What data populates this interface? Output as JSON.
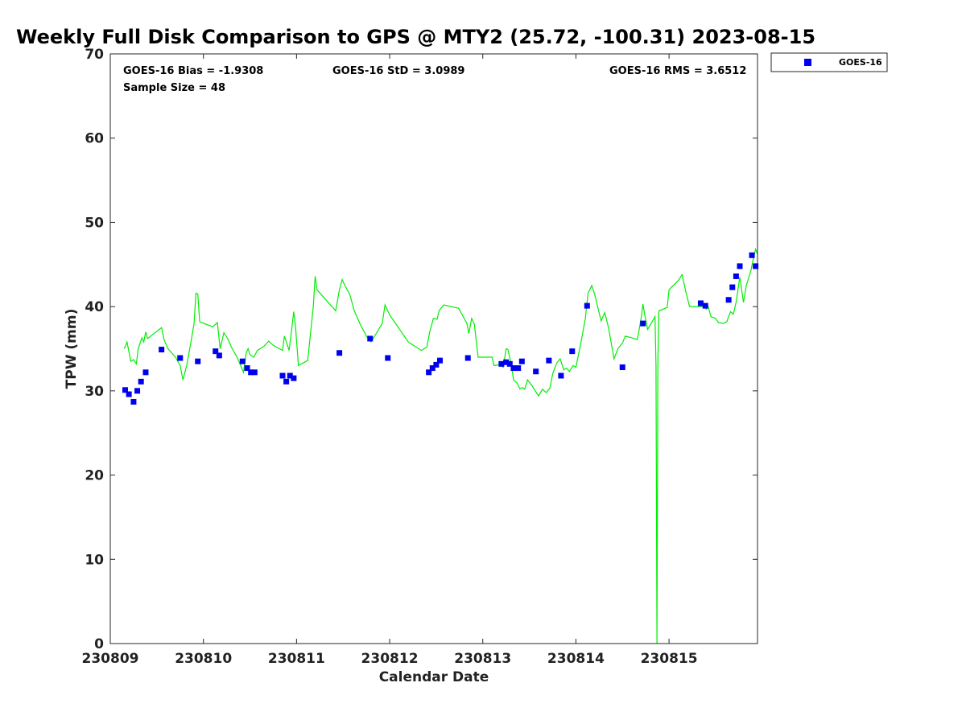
{
  "chart_data": {
    "type": "scatter",
    "title": "Weekly Full Disk Comparison to GPS @ MTY2 (25.72, -100.31) 2023-08-15",
    "xlabel": "Calendar Date",
    "ylabel": "TPW (mm)",
    "xlim": [
      0,
      6.95
    ],
    "ylim": [
      0,
      70
    ],
    "x_ticks": [
      {
        "x": 0,
        "label": "230809"
      },
      {
        "x": 1,
        "label": "230810"
      },
      {
        "x": 2,
        "label": "230811"
      },
      {
        "x": 3,
        "label": "230812"
      },
      {
        "x": 4,
        "label": "230813"
      },
      {
        "x": 5,
        "label": "230814"
      },
      {
        "x": 6,
        "label": "230815"
      }
    ],
    "y_ticks": [
      0,
      10,
      20,
      30,
      40,
      50,
      60,
      70
    ],
    "stats": {
      "bias": "GOES-16 Bias = -1.9308",
      "std": "GOES-16 StD = 3.0989",
      "rms": "GOES-16 RMS = 3.6512",
      "sample": "Sample Size = 48"
    },
    "legend_position": "top-right, outside plot",
    "series": [
      {
        "name": "GOES-16",
        "marker": "square",
        "color": "#0000ee",
        "points": [
          [
            0.16,
            30.1
          ],
          [
            0.2,
            29.6
          ],
          [
            0.25,
            28.7
          ],
          [
            0.29,
            30.0
          ],
          [
            0.33,
            31.1
          ],
          [
            0.38,
            32.2
          ],
          [
            0.55,
            34.9
          ],
          [
            0.75,
            33.9
          ],
          [
            0.94,
            33.5
          ],
          [
            1.13,
            34.7
          ],
          [
            1.17,
            34.2
          ],
          [
            1.42,
            33.5
          ],
          [
            1.47,
            32.7
          ],
          [
            1.51,
            32.2
          ],
          [
            1.55,
            32.2
          ],
          [
            1.85,
            31.8
          ],
          [
            1.89,
            31.1
          ],
          [
            1.93,
            31.8
          ],
          [
            1.97,
            31.5
          ],
          [
            2.46,
            34.5
          ],
          [
            2.79,
            36.2
          ],
          [
            2.98,
            33.9
          ],
          [
            3.42,
            32.2
          ],
          [
            3.46,
            32.7
          ],
          [
            3.5,
            33.1
          ],
          [
            3.54,
            33.6
          ],
          [
            3.84,
            33.9
          ],
          [
            4.2,
            33.2
          ],
          [
            4.25,
            33.4
          ],
          [
            4.29,
            33.2
          ],
          [
            4.33,
            32.7
          ],
          [
            4.38,
            32.7
          ],
          [
            4.42,
            33.5
          ],
          [
            4.57,
            32.3
          ],
          [
            4.71,
            33.6
          ],
          [
            4.84,
            31.8
          ],
          [
            4.96,
            34.7
          ],
          [
            5.12,
            40.1
          ],
          [
            5.5,
            32.8
          ],
          [
            5.72,
            38.0
          ],
          [
            6.34,
            40.4
          ],
          [
            6.39,
            40.1
          ],
          [
            6.64,
            40.8
          ],
          [
            6.68,
            42.3
          ],
          [
            6.72,
            43.6
          ],
          [
            6.76,
            44.8
          ],
          [
            6.89,
            46.1
          ],
          [
            6.93,
            44.8
          ]
        ]
      },
      {
        "marker": "line",
        "color": "#00ee00",
        "points": [
          [
            0.15,
            35.0
          ],
          [
            0.18,
            35.8
          ],
          [
            0.22,
            33.5
          ],
          [
            0.25,
            33.7
          ],
          [
            0.28,
            33.2
          ],
          [
            0.3,
            35.0
          ],
          [
            0.34,
            36.3
          ],
          [
            0.36,
            35.8
          ],
          [
            0.38,
            37.0
          ],
          [
            0.4,
            36.2
          ],
          [
            0.55,
            37.5
          ],
          [
            0.58,
            36.0
          ],
          [
            0.62,
            35.0
          ],
          [
            0.7,
            34.0
          ],
          [
            0.75,
            33.0
          ],
          [
            0.78,
            31.3
          ],
          [
            0.82,
            33.0
          ],
          [
            0.87,
            36.0
          ],
          [
            0.9,
            38.0
          ],
          [
            0.92,
            41.6
          ],
          [
            0.94,
            41.5
          ],
          [
            0.96,
            38.2
          ],
          [
            1.1,
            37.6
          ],
          [
            1.15,
            38.1
          ],
          [
            1.18,
            35.0
          ],
          [
            1.22,
            36.9
          ],
          [
            1.26,
            36.2
          ],
          [
            1.3,
            35.2
          ],
          [
            1.36,
            34.0
          ],
          [
            1.4,
            33.0
          ],
          [
            1.43,
            32.2
          ],
          [
            1.46,
            34.5
          ],
          [
            1.48,
            35.0
          ],
          [
            1.5,
            34.3
          ],
          [
            1.54,
            34.0
          ],
          [
            1.58,
            34.8
          ],
          [
            1.65,
            35.3
          ],
          [
            1.7,
            35.9
          ],
          [
            1.75,
            35.4
          ],
          [
            1.85,
            34.8
          ],
          [
            1.87,
            36.5
          ],
          [
            1.9,
            35.5
          ],
          [
            1.92,
            34.8
          ],
          [
            1.95,
            37.5
          ],
          [
            1.97,
            39.4
          ],
          [
            1.99,
            37.5
          ],
          [
            2.02,
            33.0
          ],
          [
            2.12,
            33.6
          ],
          [
            2.18,
            40.0
          ],
          [
            2.2,
            43.6
          ],
          [
            2.22,
            42.0
          ],
          [
            2.42,
            39.5
          ],
          [
            2.46,
            42.0
          ],
          [
            2.49,
            43.2
          ],
          [
            2.52,
            42.5
          ],
          [
            2.57,
            41.5
          ],
          [
            2.62,
            39.5
          ],
          [
            2.68,
            38.0
          ],
          [
            2.75,
            36.5
          ],
          [
            2.8,
            35.8
          ],
          [
            2.85,
            36.7
          ],
          [
            2.92,
            38.0
          ],
          [
            2.95,
            40.2
          ],
          [
            3.0,
            39.0
          ],
          [
            3.2,
            35.8
          ],
          [
            3.34,
            34.8
          ],
          [
            3.4,
            35.2
          ],
          [
            3.43,
            37.0
          ],
          [
            3.47,
            38.6
          ],
          [
            3.51,
            38.5
          ],
          [
            3.53,
            39.5
          ],
          [
            3.58,
            40.2
          ],
          [
            3.74,
            39.8
          ],
          [
            3.78,
            39.0
          ],
          [
            3.83,
            38.0
          ],
          [
            3.85,
            36.8
          ],
          [
            3.88,
            38.6
          ],
          [
            3.91,
            37.9
          ],
          [
            3.95,
            34.0
          ],
          [
            4.1,
            34.0
          ],
          [
            4.12,
            33.0
          ],
          [
            4.18,
            33.1
          ],
          [
            4.22,
            32.8
          ],
          [
            4.25,
            35.0
          ],
          [
            4.27,
            34.9
          ],
          [
            4.31,
            32.9
          ],
          [
            4.33,
            31.3
          ],
          [
            4.37,
            30.9
          ],
          [
            4.4,
            30.2
          ],
          [
            4.42,
            30.4
          ],
          [
            4.45,
            30.2
          ],
          [
            4.48,
            31.3
          ],
          [
            4.53,
            30.6
          ],
          [
            4.58,
            29.7
          ],
          [
            4.6,
            29.4
          ],
          [
            4.64,
            30.2
          ],
          [
            4.68,
            29.8
          ],
          [
            4.72,
            30.3
          ],
          [
            4.75,
            32.0
          ],
          [
            4.78,
            32.9
          ],
          [
            4.8,
            33.4
          ],
          [
            4.83,
            33.8
          ],
          [
            4.87,
            32.5
          ],
          [
            4.9,
            32.7
          ],
          [
            4.93,
            32.3
          ],
          [
            4.97,
            33.0
          ],
          [
            5.0,
            32.8
          ],
          [
            5.05,
            35.5
          ],
          [
            5.1,
            38.5
          ],
          [
            5.13,
            41.6
          ],
          [
            5.17,
            42.5
          ],
          [
            5.2,
            41.5
          ],
          [
            5.27,
            38.3
          ],
          [
            5.31,
            39.3
          ],
          [
            5.35,
            37.5
          ],
          [
            5.41,
            33.8
          ],
          [
            5.45,
            35.0
          ],
          [
            5.5,
            35.7
          ],
          [
            5.53,
            36.5
          ],
          [
            5.6,
            36.3
          ],
          [
            5.66,
            36.1
          ],
          [
            5.7,
            38.6
          ],
          [
            5.72,
            40.3
          ],
          [
            5.74,
            39.0
          ],
          [
            5.77,
            37.3
          ],
          [
            5.85,
            38.8
          ],
          [
            5.86,
            33.0
          ],
          [
            5.87,
            0
          ],
          [
            5.88,
            33.0
          ],
          [
            5.89,
            39.5
          ],
          [
            5.98,
            39.9
          ],
          [
            6.0,
            42.0
          ],
          [
            6.1,
            43.1
          ],
          [
            6.14,
            43.8
          ],
          [
            6.18,
            41.8
          ],
          [
            6.22,
            40.0
          ],
          [
            6.35,
            40.0
          ],
          [
            6.38,
            40.2
          ],
          [
            6.4,
            39.7
          ],
          [
            6.42,
            40.0
          ],
          [
            6.45,
            38.8
          ],
          [
            6.5,
            38.6
          ],
          [
            6.53,
            38.1
          ],
          [
            6.58,
            38.0
          ],
          [
            6.62,
            38.2
          ],
          [
            6.66,
            39.4
          ],
          [
            6.69,
            39.1
          ],
          [
            6.72,
            40.5
          ],
          [
            6.76,
            43.5
          ],
          [
            6.8,
            40.5
          ],
          [
            6.83,
            42.5
          ],
          [
            6.88,
            44.3
          ],
          [
            6.91,
            46.0
          ],
          [
            6.93,
            46.8
          ],
          [
            6.95,
            46.2
          ]
        ]
      }
    ]
  }
}
